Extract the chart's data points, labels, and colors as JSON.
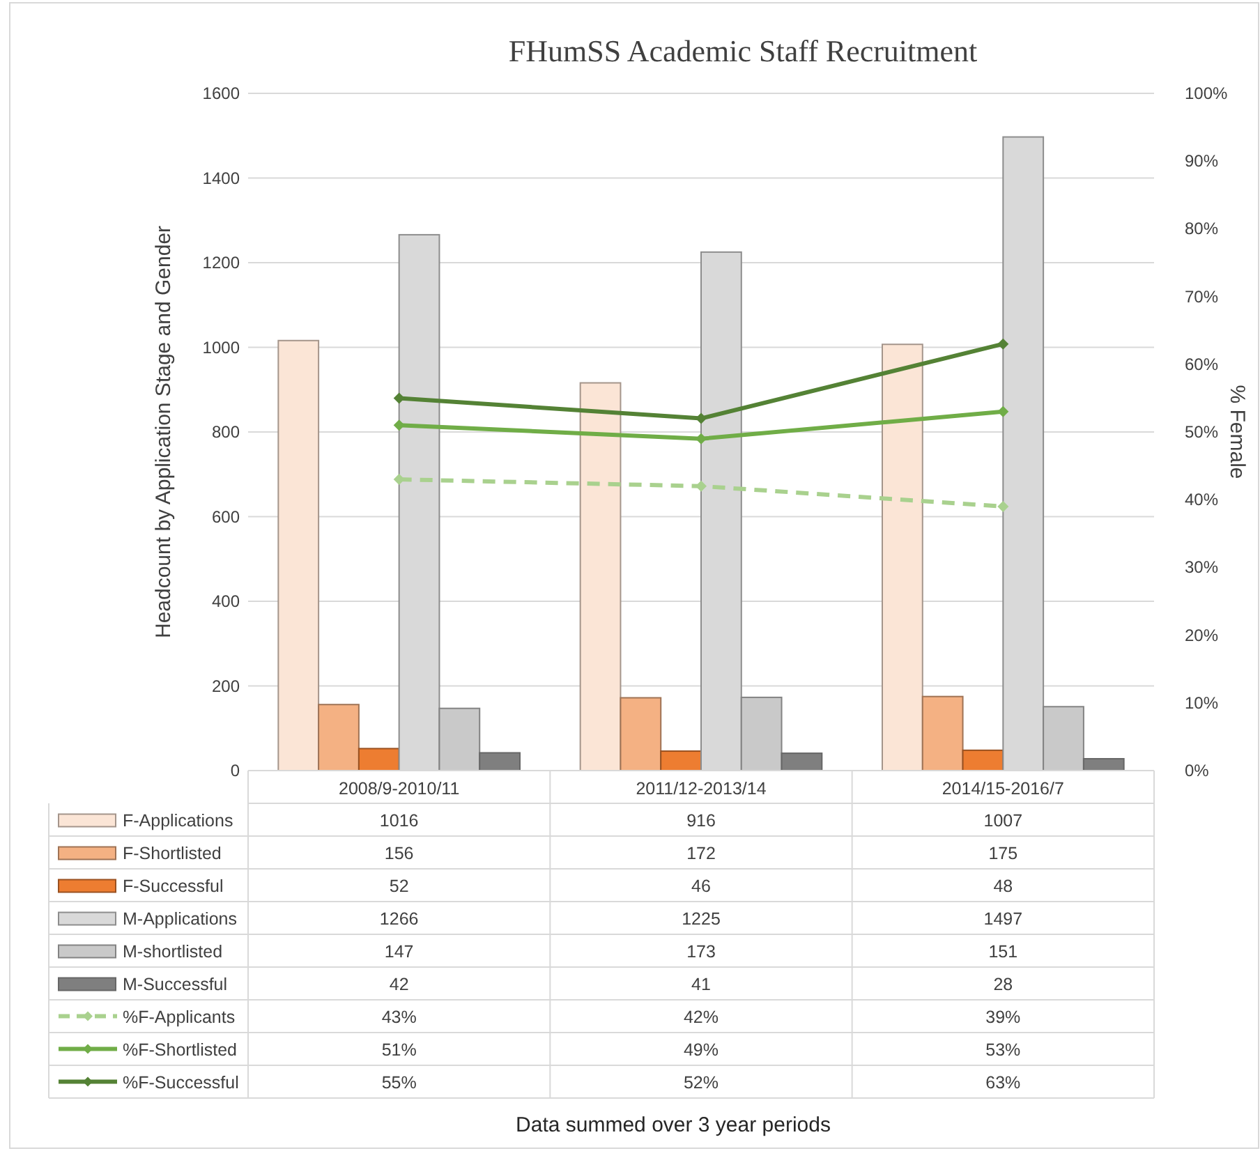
{
  "chart_data": {
    "type": "bar",
    "title": "FHumSS Academic Staff Recruitment",
    "ylabel": "Headcount by Application Stage and Gender",
    "y2label": "% Female",
    "annotations": [
      "Data summed over 3 year periods"
    ],
    "categories": [
      "2008/9-2010/11",
      "2011/12-2013/14",
      "2014/15-2016/7"
    ],
    "ylim": [
      0,
      1600
    ],
    "yticks": [
      0,
      200,
      400,
      600,
      800,
      1000,
      1200,
      1400,
      1600
    ],
    "y2lim": [
      0,
      100
    ],
    "y2ticks": [
      {
        "value": 0,
        "label": "0%"
      },
      {
        "value": 10,
        "label": "10%"
      },
      {
        "value": 20,
        "label": "20%"
      },
      {
        "value": 30,
        "label": "30%"
      },
      {
        "value": 40,
        "label": "40%"
      },
      {
        "value": 50,
        "label": "50%"
      },
      {
        "value": 60,
        "label": "60%"
      },
      {
        "value": 70,
        "label": "70%"
      },
      {
        "value": 80,
        "label": "80%"
      },
      {
        "value": 90,
        "label": "90%"
      },
      {
        "value": 100,
        "label": "100%"
      }
    ],
    "grid": "y",
    "legend": "bottom",
    "marker": "diamond",
    "series": [
      {
        "name": "F-Applications",
        "color": "#fbe5d6",
        "values": [
          1016,
          916,
          1007
        ],
        "value_labels": [
          "1016",
          "916",
          "1007"
        ]
      },
      {
        "name": "F-Shortlisted",
        "color": "#f4b183",
        "values": [
          156,
          172,
          175
        ],
        "value_labels": [
          "156",
          "172",
          "175"
        ]
      },
      {
        "name": "F-Successful",
        "color": "#ed7d31",
        "values": [
          52,
          46,
          48
        ],
        "value_labels": [
          "52",
          "46",
          "48"
        ]
      },
      {
        "name": "M-Applications",
        "color": "#d9d9d9",
        "values": [
          1266,
          1225,
          1497
        ],
        "value_labels": [
          "1266",
          "1225",
          "1497"
        ]
      },
      {
        "name": "M-shortlisted",
        "color": "#c9c9c9",
        "values": [
          147,
          173,
          151
        ],
        "value_labels": [
          "147",
          "173",
          "151"
        ]
      },
      {
        "name": "M-Successful",
        "color": "#7f7f7f",
        "values": [
          42,
          41,
          28
        ],
        "value_labels": [
          "42",
          "41",
          "28"
        ]
      },
      {
        "name": "%F-Applicants",
        "type": "line",
        "axis": "y2",
        "line_style": "dashed",
        "color": "#a9d18e",
        "values": [
          43,
          42,
          39
        ],
        "value_labels": [
          "43%",
          "42%",
          "39%"
        ]
      },
      {
        "name": "%F-Shortlisted",
        "type": "line",
        "axis": "y2",
        "line_style": "solid",
        "color": "#70ad47",
        "values": [
          51,
          49,
          53
        ],
        "value_labels": [
          "51%",
          "49%",
          "53%"
        ]
      },
      {
        "name": "%F-Successful",
        "type": "line",
        "axis": "y2",
        "line_style": "solid",
        "color": "#548235",
        "values": [
          55,
          52,
          63
        ],
        "value_labels": [
          "55%",
          "52%",
          "63%"
        ]
      }
    ]
  }
}
